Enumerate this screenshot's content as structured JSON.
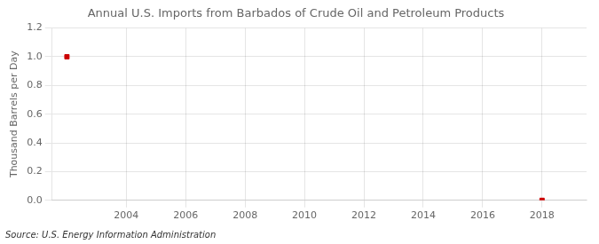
{
  "chart_data": {
    "type": "scatter",
    "title": "Annual U.S. Imports from Barbados of Crude Oil and Petroleum Products",
    "y_label": "Thousand Barrels per Day",
    "annotations": [
      "Source: U.S. Energy Information Administration"
    ],
    "x": [
      2002,
      2018
    ],
    "values": [
      1.0,
      0.0
    ],
    "color": "#cc0000",
    "marker": "square",
    "xlim": [
      2001.5,
      2019.5
    ],
    "ylim": [
      0.0,
      1.2
    ],
    "xticks": [
      2004,
      2006,
      2008,
      2010,
      2012,
      2014,
      2016,
      2018
    ],
    "yticks": [
      {
        "value": 0,
        "label": "0.0"
      },
      0.2,
      0.4,
      0.6,
      0.8,
      {
        "value": 1,
        "label": "1.0"
      },
      1.2
    ],
    "grid": true
  }
}
